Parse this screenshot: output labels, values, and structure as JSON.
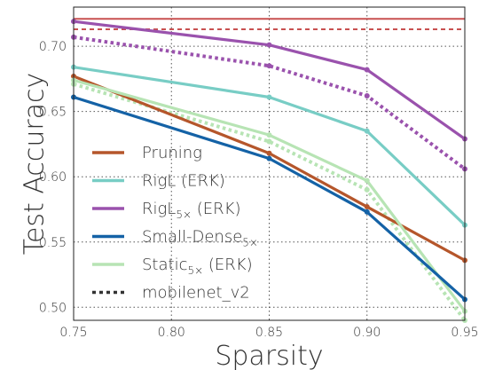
{
  "chart_data": {
    "type": "line",
    "xlabel": "Sparsity",
    "ylabel": "Test Accuracy",
    "xlim": [
      0.75,
      0.95
    ],
    "ylim": [
      0.49,
      0.73
    ],
    "x_ticks": [
      "0.75",
      "0.80",
      "0.85",
      "0.90",
      "0.95"
    ],
    "y_ticks": [
      "0.50",
      "0.55",
      "0.60",
      "0.65",
      "0.70"
    ],
    "grid": true,
    "legend_position": "lower-left",
    "x": [
      0.75,
      0.85,
      0.9,
      0.95
    ],
    "series": [
      {
        "name": "Pruning",
        "base": "Pruning",
        "sub": "",
        "suffix": "",
        "color": "#b5562b",
        "style": "solid",
        "values": [
          0.677,
          0.618,
          0.577,
          0.536
        ]
      },
      {
        "name": "RigL (ERK)",
        "base": "RigL (ERK)",
        "sub": "",
        "suffix": "",
        "color": "#78cdc5",
        "style": "solid",
        "values": [
          0.684,
          0.661,
          0.635,
          0.563
        ]
      },
      {
        "name": "RigL5× (ERK)",
        "base": "RigL",
        "sub": "5×",
        "suffix": " (ERK)",
        "color": "#9a52ad",
        "style": "solid",
        "values": [
          0.719,
          0.701,
          0.682,
          0.629
        ]
      },
      {
        "name": "Small-Dense5×",
        "base": "Small-Dense",
        "sub": "5×",
        "suffix": "",
        "color": "#1462a6",
        "style": "solid",
        "values": [
          0.661,
          0.614,
          0.573,
          0.506
        ]
      },
      {
        "name": "Static5× (ERK)",
        "base": "Static",
        "sub": "5×",
        "suffix": " (ERK)",
        "color": "#b7e4b4",
        "style": "solid",
        "values": [
          0.674,
          0.632,
          0.597,
          0.497
        ]
      },
      {
        "name": "mobilenet_v2",
        "base": "mobilenet_v2",
        "sub": "",
        "suffix": "",
        "color": "#333333",
        "style": "dotted",
        "values": null
      }
    ],
    "dotted_series": [
      {
        "color": "#9a52ad",
        "values": [
          0.707,
          0.685,
          0.662,
          0.606
        ]
      },
      {
        "color": "#b7e4b4",
        "values": [
          0.671,
          0.627,
          0.59,
          0.49
        ]
      }
    ],
    "reference_lines": [
      {
        "color": "#c85050",
        "style": "solid",
        "value": 0.721
      },
      {
        "color": "#c85050",
        "style": "dashed",
        "value": 0.713
      }
    ]
  }
}
